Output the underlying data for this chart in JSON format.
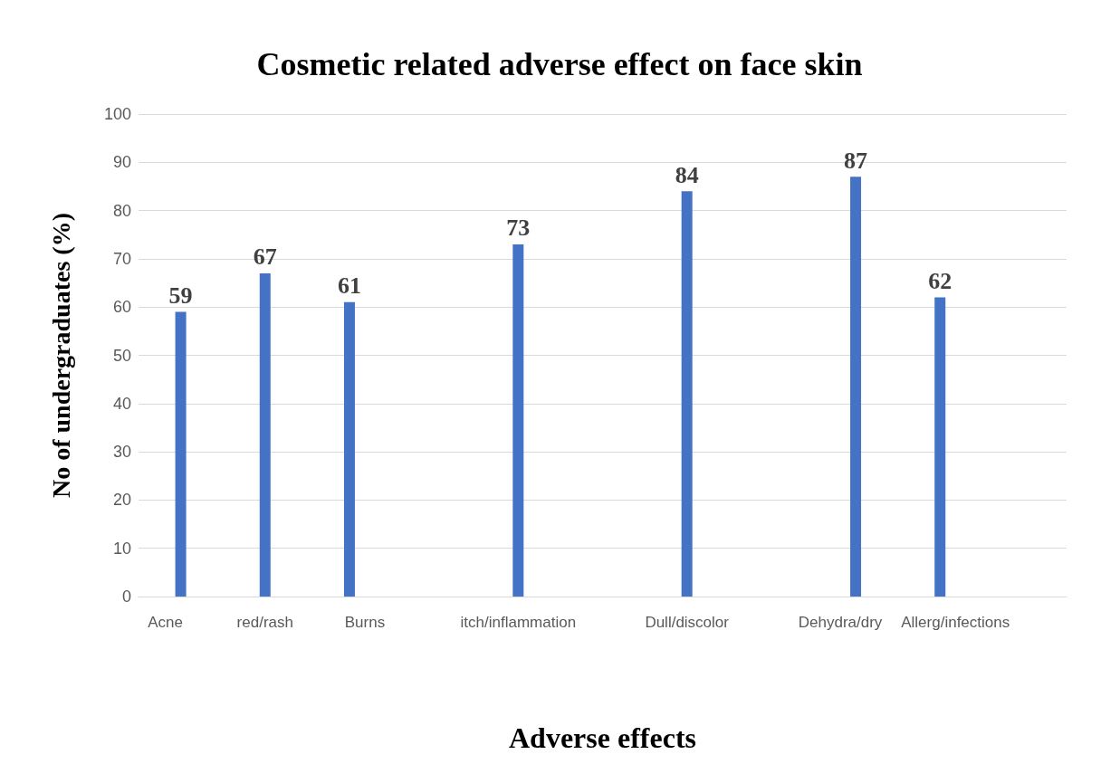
{
  "chart_data": {
    "type": "bar",
    "title": "Cosmetic related adverse effect on face skin",
    "xlabel": "Adverse effects",
    "ylabel": "No of undergraduates (%)",
    "categories": [
      "Acne",
      "red/rash",
      "Burns",
      null,
      "itch/inflammation",
      null,
      "Dull/discolor",
      null,
      "Dehydra/dry",
      "Allerg/infections",
      null
    ],
    "values": [
      59,
      67,
      61,
      null,
      73,
      null,
      84,
      null,
      87,
      62,
      null
    ],
    "color": "#4472c4",
    "ylim": [
      0,
      100
    ],
    "yticks": [
      0,
      10,
      20,
      30,
      40,
      50,
      60,
      70,
      80,
      90,
      100
    ],
    "grid": "y",
    "data_labels": true
  }
}
